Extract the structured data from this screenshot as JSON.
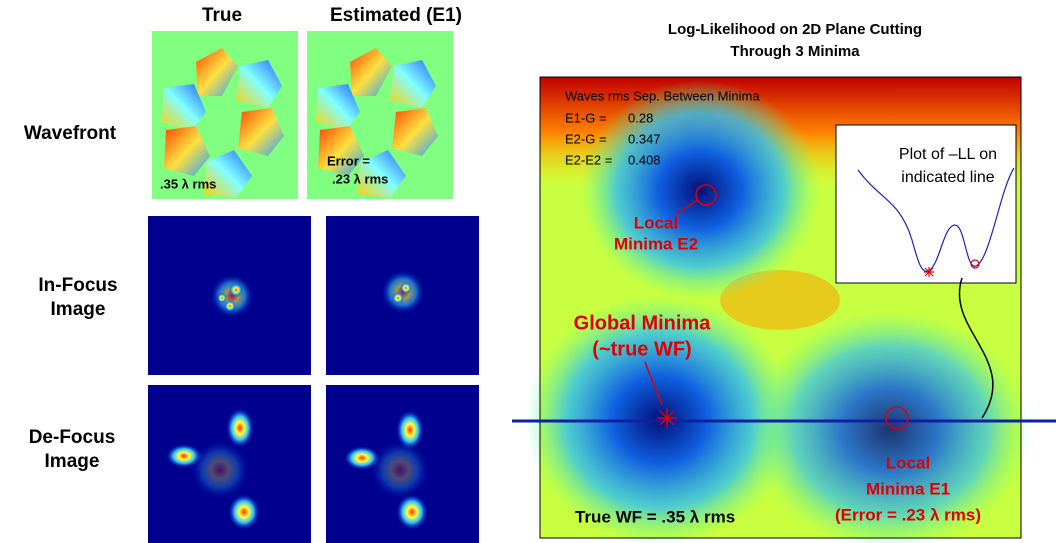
{
  "left_panel": {
    "column_headers": [
      "True",
      "Estimated (E1)"
    ],
    "row_labels": [
      [
        "Wavefront"
      ],
      [
        "In-Focus",
        "Image"
      ],
      [
        "De-Focus",
        "Image"
      ]
    ],
    "true_wavefront_note": ".35 λ rms",
    "estimated_wavefront_note": [
      "Error =",
      ".23 λ rms"
    ]
  },
  "right_panel": {
    "title": [
      "Log-Likelihood on 2D Plane Cutting",
      "Through 3 Minima"
    ],
    "separation_heading": "Waves rms Sep. Between Minima",
    "separations": [
      {
        "label": "E1-G =",
        "value": 0.28
      },
      {
        "label": "E2-G =",
        "value": 0.347
      },
      {
        "label": "E2-E2 =",
        "value": 0.408
      }
    ],
    "local_minima_e2": [
      "Local",
      "Minima E2"
    ],
    "global_minima": [
      "Global Minima",
      "(~true WF)"
    ],
    "local_minima_e1": [
      "Local",
      "Minima E1",
      "(Error = .23 λ rms)"
    ],
    "footer": "True WF = .35 λ rms",
    "inset_title": [
      "Plot of –LL on",
      "indicated line"
    ]
  }
}
